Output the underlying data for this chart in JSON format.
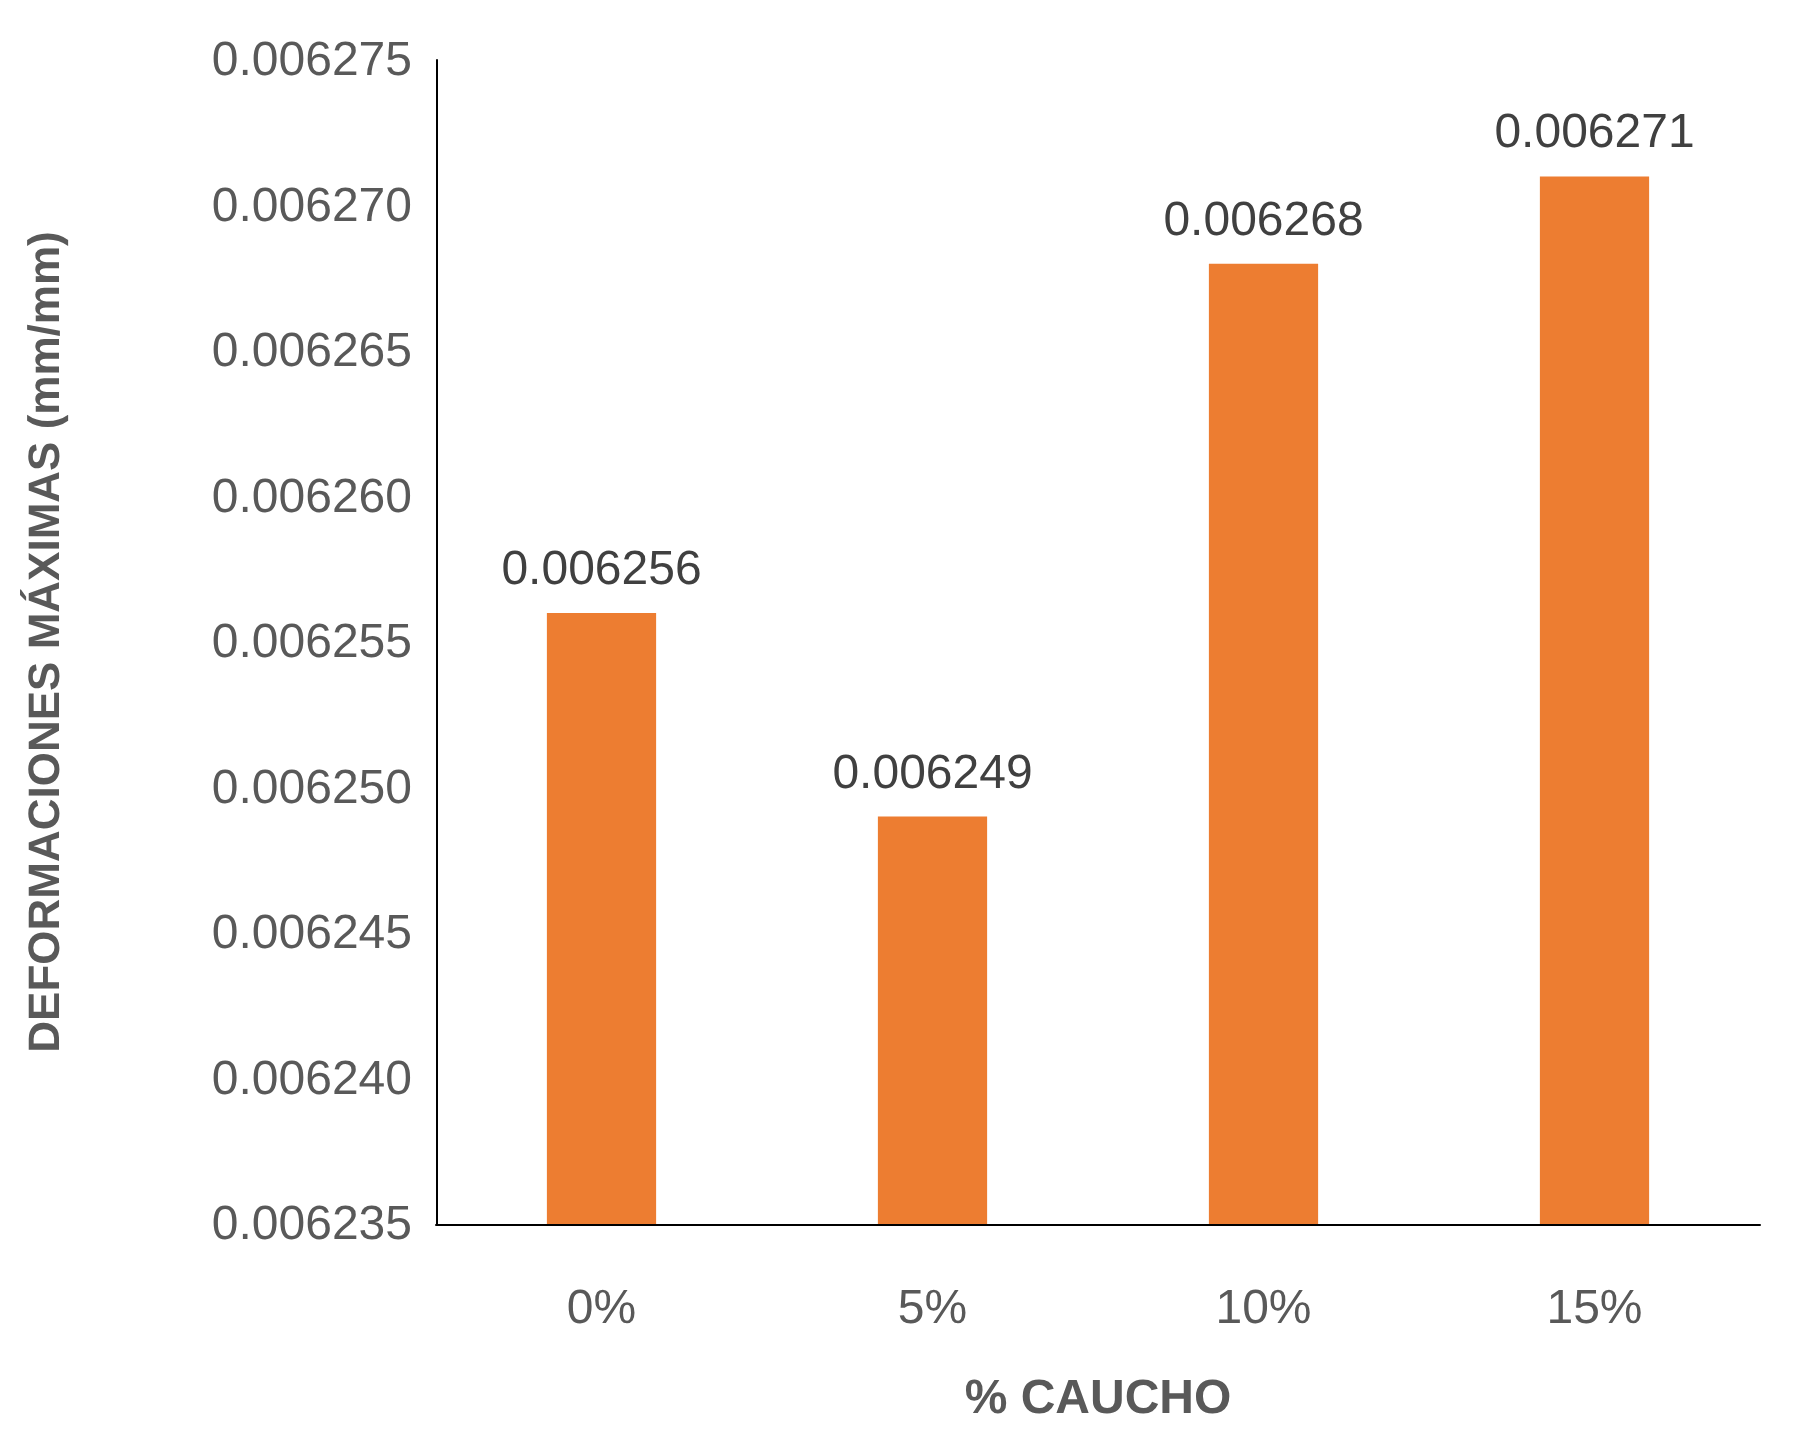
{
  "chart_data": {
    "type": "bar",
    "xlabel": "% CAUCHO",
    "ylabel": "DEFORMACIONES MÁXIMAS (mm/mm)",
    "categories": [
      "0%",
      "5%",
      "10%",
      "15%"
    ],
    "values": [
      0.006256,
      0.006249,
      0.006268,
      0.006271
    ],
    "color": "#ed7d31",
    "ylim": [
      0.006235,
      0.006275
    ],
    "yticks": [
      0.006235,
      {
        "value": 0.00624,
        "label": "0.006240"
      },
      0.006245,
      {
        "value": 0.00625,
        "label": "0.006250"
      },
      0.006255,
      {
        "value": 0.00626,
        "label": "0.006260"
      },
      0.006265,
      {
        "value": 0.00627,
        "label": "0.006270"
      },
      0.006275
    ],
    "data_labels": true,
    "grid": false
  }
}
